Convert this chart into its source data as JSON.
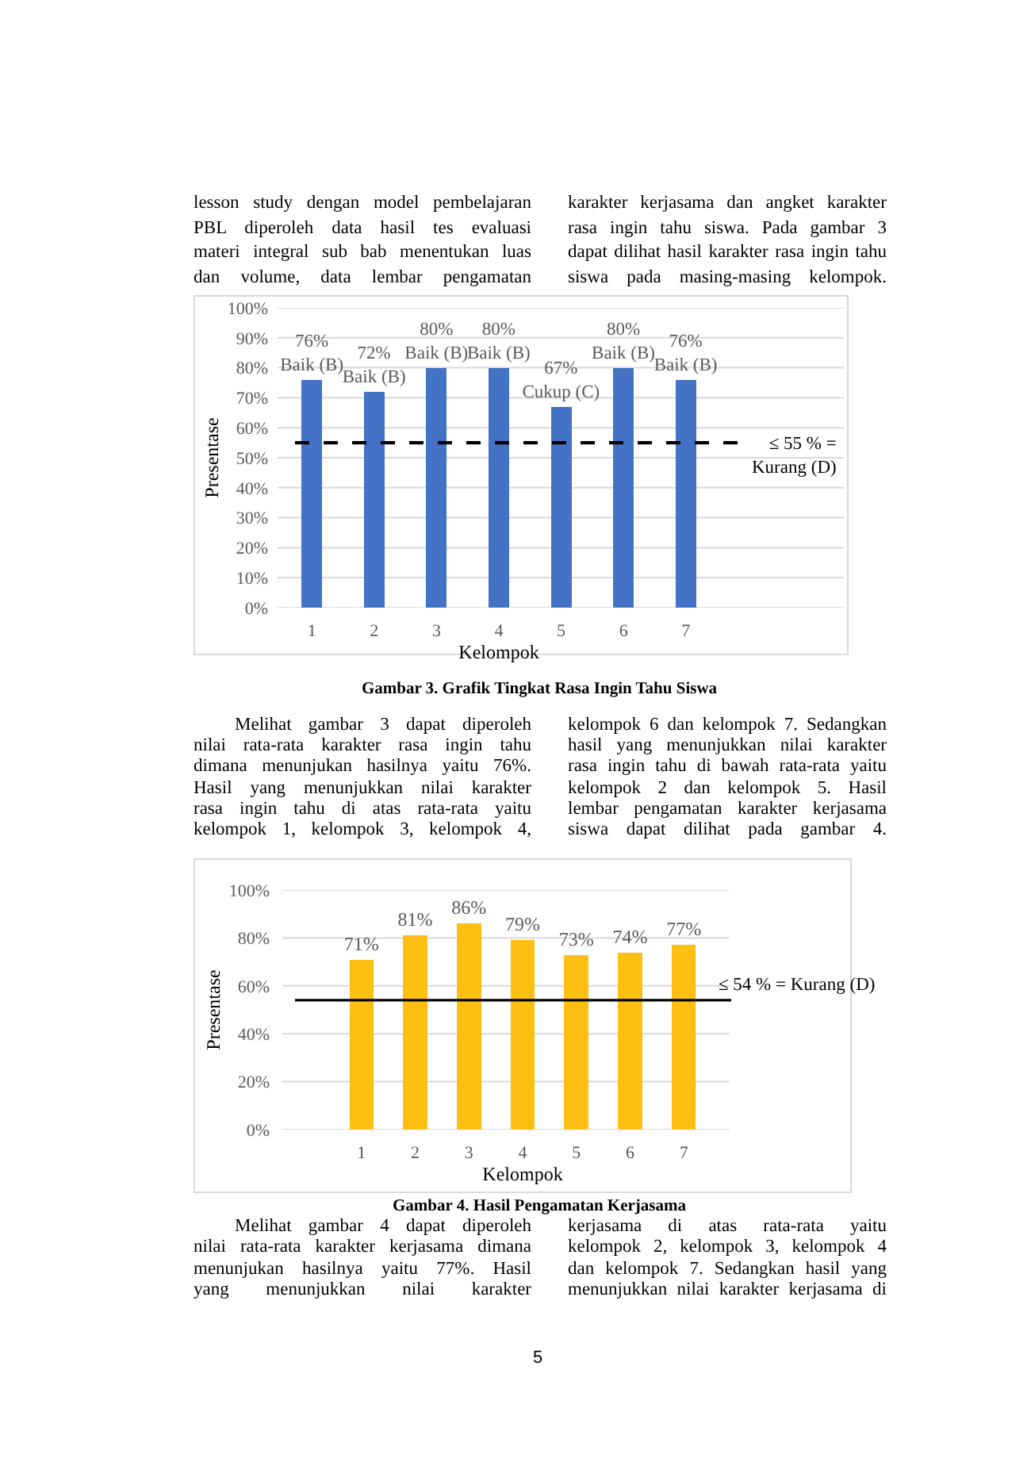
{
  "chart_data": [
    {
      "type": "bar",
      "title": "Gambar 3. Grafik Tingkat Rasa Ingin Tahu Siswa",
      "xlabel": "Kelompok",
      "ylabel": "Presentase",
      "categories": [
        "1",
        "2",
        "3",
        "4",
        "5",
        "6",
        "7"
      ],
      "values": [
        76,
        72,
        80,
        80,
        67,
        80,
        76
      ],
      "color": "#4472c4",
      "value_labels": [
        "76%\nBaik (B)",
        "72%\nBaik (B)",
        "80%\nBaik (B)",
        "80%\nBaik (B)",
        "67%\nCukup (C)",
        "80%\nBaik (B)",
        "76%\nBaik (B)"
      ],
      "ylim": [
        0,
        100
      ],
      "yticks": [
        {
          "value": 0,
          "label": "0%"
        },
        {
          "value": 10,
          "label": "10%"
        },
        {
          "value": 20,
          "label": "20%"
        },
        {
          "value": 30,
          "label": "30%"
        },
        {
          "value": 40,
          "label": "40%"
        },
        {
          "value": 50,
          "label": "50%"
        },
        {
          "value": 60,
          "label": "60%"
        },
        {
          "value": 70,
          "label": "70%"
        },
        {
          "value": 80,
          "label": "80%"
        },
        {
          "value": 90,
          "label": "90%"
        },
        {
          "value": 100,
          "label": "100%"
        }
      ],
      "grid": "y",
      "ref_lines": [
        {
          "axis": "y",
          "value": 55,
          "label": "≤ 55 % =\nKurang (D)",
          "color": "#000000",
          "line_style": "dashed"
        }
      ],
      "annotations": [
        "lesson study dengan model pembelajaran\nPBL diperoleh data hasil tes evaluasi\nmateri integral sub bab menentukan luas\ndan volume, data lembar pengamatan",
        "karakter kerjasama dan angket karakter\nrasa ingin tahu siswa. Pada gambar 3\ndapat dilihat hasil karakter rasa ingin tahu\nsiswa pada masing-masing kelompok.",
        "Melihat gambar 3 dapat diperoleh\nnilai rata-rata karakter rasa ingin tahu\ndimana menunjukan hasilnya yaitu 76%.\nHasil yang menunjukkan nilai karakter\nrasa ingin tahu di atas rata-rata yaitu\nkelompok 1, kelompok 3, kelompok 4,",
        "kelompok 6 dan kelompok 7. Sedangkan\nhasil yang menunjukkan nilai karakter\nrasa ingin tahu di bawah rata-rata yaitu\nkelompok 2 dan kelompok 5. Hasil\nlembar pengamatan karakter kerjasama\nsiswa dapat dilihat pada gambar 4."
      ]
    },
    {
      "type": "bar",
      "title": "Gambar 4. Hasil Pengamatan Kerjasama",
      "xlabel": "Kelompok",
      "ylabel": "Presentase",
      "categories": [
        "1",
        "2",
        "3",
        "4",
        "5",
        "6",
        "7"
      ],
      "values": [
        71,
        81,
        86,
        79,
        73,
        74,
        77
      ],
      "color": "#fcbf12",
      "value_labels": [
        "71%",
        "81%",
        "86%",
        "79%",
        "73%",
        "74%",
        "77%"
      ],
      "ylim": [
        0,
        100
      ],
      "yticks": [
        {
          "value": 0,
          "label": "0%"
        },
        {
          "value": 20,
          "label": "20%"
        },
        {
          "value": 40,
          "label": "40%"
        },
        {
          "value": 60,
          "label": "60%"
        },
        {
          "value": 80,
          "label": "80%"
        },
        {
          "value": 100,
          "label": "100%"
        }
      ],
      "grid": "y",
      "ref_lines": [
        {
          "axis": "y",
          "value": 54,
          "label": "≤ 54 % = Kurang (D)",
          "color": "#000000",
          "line_style": "solid"
        }
      ],
      "annotations": [
        "Melihat gambar 4 dapat diperoleh\nnilai rata-rata karakter kerjasama dimana\nmenunjukan hasilnya yaitu 77%. Hasil\nyang menunjukkan nilai karakter",
        "kerjasama di atas rata-rata yaitu\nkelompok 2, kelompok 3, kelompok 4\ndan kelompok 7. Sedangkan hasil yang\nmenunjukkan nilai karakter kerjasama di",
        "5"
      ]
    }
  ]
}
